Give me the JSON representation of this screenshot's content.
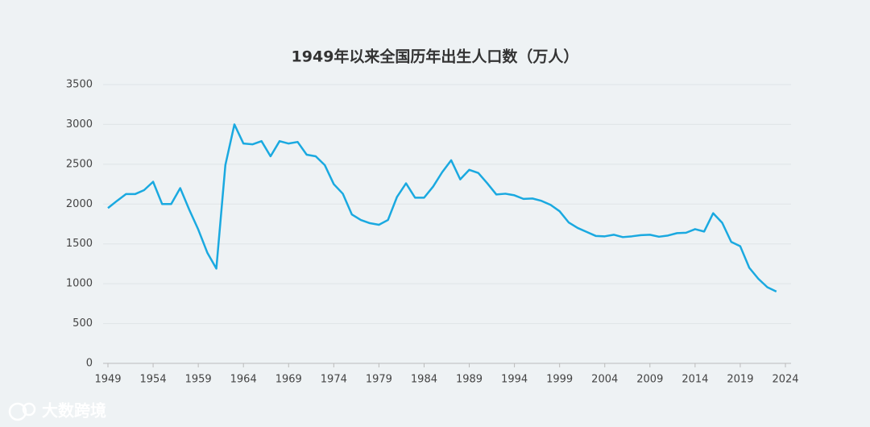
{
  "chart_data": {
    "type": "line",
    "title": "1949年以来全国历年出生人口数（万人）",
    "x": [
      1949,
      1950,
      1951,
      1952,
      1953,
      1954,
      1955,
      1956,
      1957,
      1958,
      1959,
      1960,
      1961,
      1962,
      1963,
      1964,
      1965,
      1966,
      1967,
      1968,
      1969,
      1970,
      1971,
      1972,
      1973,
      1974,
      1975,
      1976,
      1977,
      1978,
      1979,
      1980,
      1981,
      1982,
      1983,
      1984,
      1985,
      1986,
      1987,
      1988,
      1989,
      1990,
      1991,
      1992,
      1993,
      1994,
      1995,
      1996,
      1997,
      1998,
      1999,
      2000,
      2001,
      2002,
      2003,
      2004,
      2005,
      2006,
      2007,
      2008,
      2009,
      2010,
      2011,
      2012,
      2013,
      2014,
      2015,
      2016,
      2017,
      2018,
      2019,
      2020,
      2021,
      2022,
      2023
    ],
    "series": [
      {
        "name": "出生人口",
        "color": "#1aa9e0",
        "values": [
          1950,
          2040,
          2125,
          2125,
          2175,
          2280,
          2000,
          2000,
          2200,
          1930,
          1680,
          1390,
          1190,
          2490,
          3000,
          2760,
          2750,
          2790,
          2600,
          2790,
          2760,
          2780,
          2620,
          2600,
          2490,
          2250,
          2130,
          1870,
          1800,
          1760,
          1740,
          1800,
          2090,
          2260,
          2080,
          2080,
          2220,
          2400,
          2550,
          2310,
          2430,
          2390,
          2260,
          2120,
          2130,
          2110,
          2065,
          2070,
          2040,
          1990,
          1910,
          1770,
          1700,
          1650,
          1600,
          1595,
          1615,
          1585,
          1595,
          1610,
          1615,
          1590,
          1605,
          1635,
          1640,
          1685,
          1655,
          1885,
          1765,
          1525,
          1470,
          1200,
          1062,
          956,
          902
        ]
      }
    ],
    "xlim": [
      1949,
      2024
    ],
    "xticks": [
      1949,
      1954,
      1959,
      1964,
      1969,
      1974,
      1979,
      1984,
      1989,
      1994,
      1999,
      2004,
      2009,
      2014,
      2019,
      2024
    ],
    "ylim": [
      0,
      3500
    ],
    "yticks": [
      0,
      500,
      1000,
      1500,
      2000,
      2500,
      3000,
      3500
    ],
    "grid": true
  },
  "watermark": "大数跨境"
}
